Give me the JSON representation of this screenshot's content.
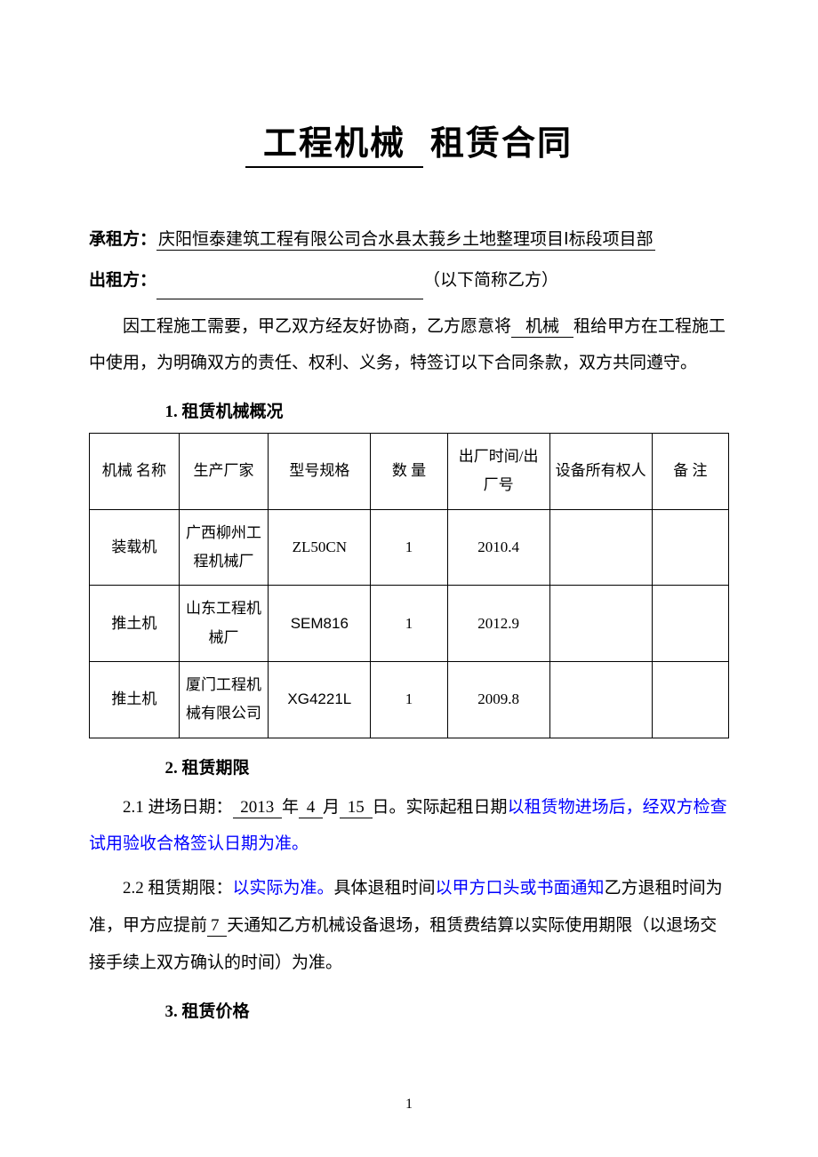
{
  "title": {
    "underlined": "工程机械",
    "plain": "租赁合同"
  },
  "parties": {
    "lessee_label": "承租方：",
    "lessee_value": "庆阳恒泰建筑工程有限公司合水县太莪乡土地整理项目Ⅰ标段项目部",
    "lessor_label": "出租方：",
    "lessor_suffix": "（以下简称乙方）"
  },
  "intro": {
    "p1_a": "因工程施工需要，甲乙双方经友好协商，乙方愿意将",
    "p1_blank": "机械",
    "p1_b": "租给甲方在工程施工中使用，为明确双方的责任、权利、义务，特签订以下合同条款，双方共同遵守。"
  },
  "section1": {
    "heading": "1.  租赁机械概况",
    "columns": [
      "机械  名称",
      "生产厂家",
      "型号规格",
      "数 量",
      "出厂时间/出厂号",
      "设备所有权人",
      "备 注"
    ],
    "rows": [
      {
        "name": "装载机",
        "maker": "广西柳州工程机械厂",
        "model": "ZL50CN",
        "qty": "1",
        "date": "2010.4",
        "owner": "",
        "note": "",
        "model_bold": false
      },
      {
        "name": "推土机",
        "maker": "山东工程机械厂",
        "model": "SEM816",
        "qty": "1",
        "date": "2012.9",
        "owner": "",
        "note": "",
        "model_bold": true
      },
      {
        "name": "推土机",
        "maker": "厦门工程机械有限公司",
        "model": "XG4221L",
        "qty": "1",
        "date": "2009.8",
        "owner": "",
        "note": "",
        "model_bold": true
      }
    ],
    "col_widths": [
      "14%",
      "14%",
      "16%",
      "12%",
      "16%",
      "16%",
      "12%"
    ]
  },
  "section2": {
    "heading": "2.  租赁期限",
    "c21_a": "2.1 进场日期：",
    "c21_year": " 2013 ",
    "c21_y": "年",
    "c21_month": " 4 ",
    "c21_m": "月",
    "c21_day": " 15  ",
    "c21_d": "日。实际起租日期",
    "c21_blue": "以租赁物进场后，经双方检查试用验收合格签认日期为准。",
    "c22_a": "2.2 租赁期限：",
    "c22_blue1": "以实际为准。",
    "c22_b": "具体退租时间",
    "c22_blue2": "以甲方口头或书面通知",
    "c22_c": "乙方退租时间为准，甲方应提前",
    "c22_days": "7     ",
    "c22_d": "天通知乙方机械设备退场，租赁费结算以实际使用期限（以退场交接手续上双方确认的时间）为准。"
  },
  "section3": {
    "heading": "3.  租赁价格"
  },
  "page_number": "1"
}
